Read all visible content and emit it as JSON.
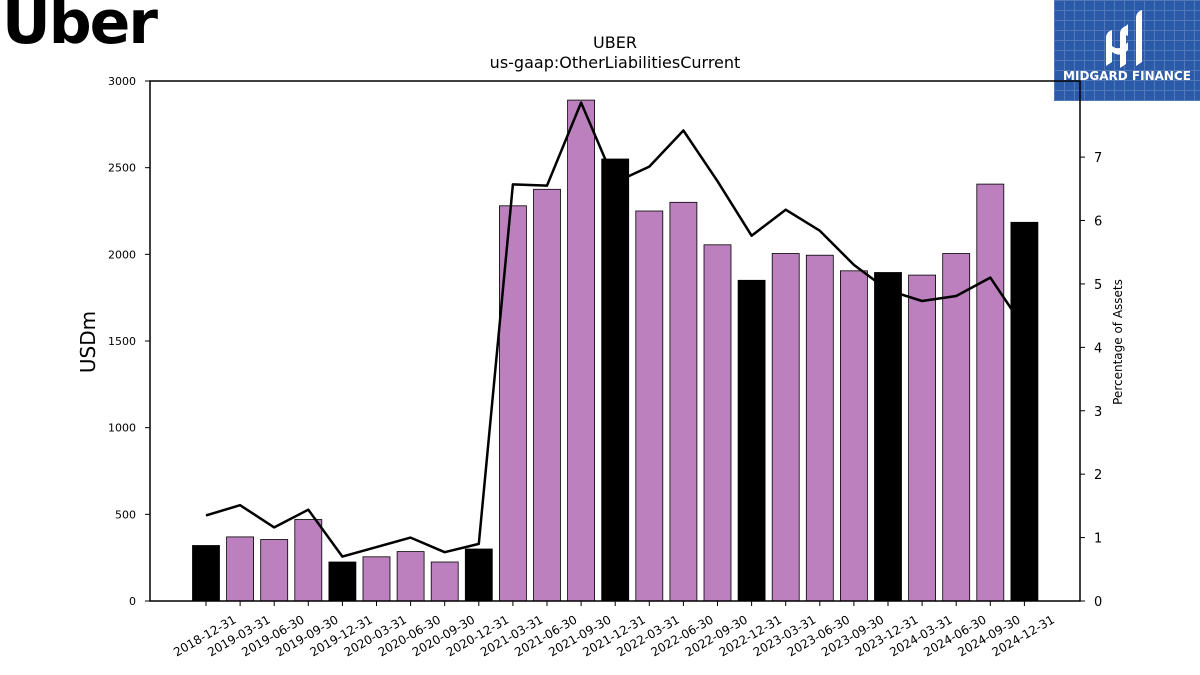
{
  "brand": {
    "logo_text": "Uber"
  },
  "sponsor": {
    "name": "MIDGARD FINANCE",
    "color": "#2b5aa8"
  },
  "chart_data": {
    "type": "bar",
    "title": "UBER",
    "subtitle": "us-gaap:OtherLiabilitiesCurrent",
    "ylabel": "USDm",
    "y2label": "Percentage of Assets",
    "ylim": [
      0,
      3000
    ],
    "y2lim": [
      0,
      8.2
    ],
    "yticks": [
      0,
      500,
      1000,
      1500,
      2000,
      2500,
      3000
    ],
    "y2ticks": [
      0,
      1,
      2,
      3,
      4,
      5,
      6,
      7
    ],
    "grid": false,
    "colors": {
      "annual_bar": "#000000",
      "quarterly_bar": "#bb80bd",
      "line": "#000000"
    },
    "categories": [
      "2018-12-31",
      "2019-03-31",
      "2019-06-30",
      "2019-09-30",
      "2019-12-31",
      "2020-03-31",
      "2020-06-30",
      "2020-09-30",
      "2020-12-31",
      "2021-03-31",
      "2021-06-30",
      "2021-09-30",
      "2021-12-31",
      "2022-03-31",
      "2022-06-30",
      "2022-09-30",
      "2022-12-31",
      "2023-03-31",
      "2023-06-30",
      "2023-09-30",
      "2023-12-31",
      "2024-03-31",
      "2024-06-30",
      "2024-09-30",
      "2024-12-31"
    ],
    "series": [
      {
        "type": "bar",
        "axis": "left",
        "values": [
          320,
          370,
          355,
          470,
          225,
          255,
          285,
          225,
          300,
          2280,
          2375,
          2890,
          2550,
          2250,
          2300,
          2055,
          1850,
          2005,
          1995,
          1905,
          1895,
          1880,
          2005,
          2405,
          2185
        ],
        "annual_flags": [
          true,
          false,
          false,
          false,
          true,
          false,
          false,
          false,
          true,
          false,
          false,
          false,
          true,
          false,
          false,
          false,
          true,
          false,
          false,
          false,
          true,
          false,
          false,
          false,
          true
        ]
      },
      {
        "type": "line",
        "axis": "right",
        "values": [
          1.35,
          1.51,
          1.16,
          1.44,
          0.7,
          0.85,
          1.0,
          0.77,
          0.9,
          6.57,
          6.55,
          7.86,
          6.6,
          6.85,
          7.42,
          6.62,
          5.76,
          6.17,
          5.84,
          5.3,
          4.9,
          4.73,
          4.81,
          5.1,
          4.3
        ]
      }
    ]
  }
}
